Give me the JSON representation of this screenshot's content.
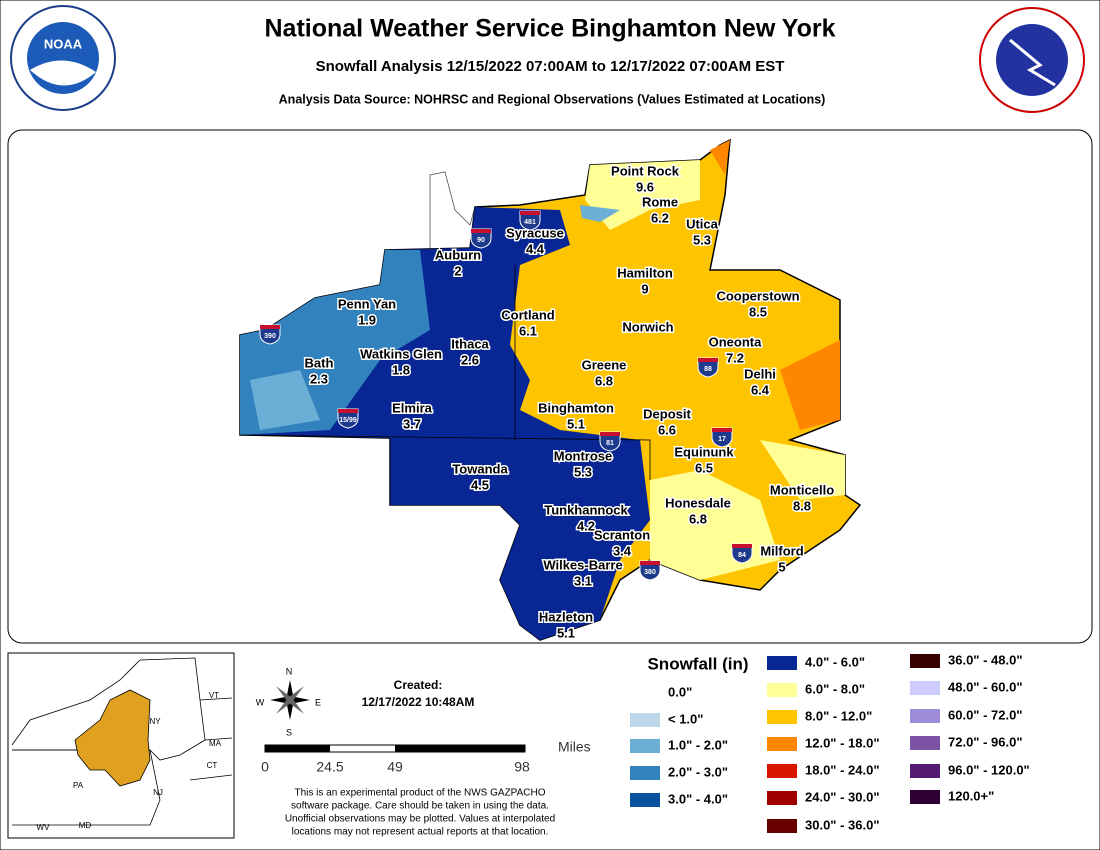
{
  "header": {
    "title": "National Weather Service Binghamton New York",
    "subtitle": "Snowfall Analysis 12/15/2022 07:00AM to 12/17/2022 07:00AM EST",
    "source": "Analysis Data Source: NOHRSC and Regional Observations (Values Estimated at Locations)",
    "left_logo": "NOAA"
  },
  "map": {
    "cities": [
      {
        "name": "Point Rock",
        "value": "9.6"
      },
      {
        "name": "Rome",
        "value": "6.2"
      },
      {
        "name": "Utica",
        "value": "5.3"
      },
      {
        "name": "Syracuse",
        "value": "4.4"
      },
      {
        "name": "Auburn",
        "value": "2"
      },
      {
        "name": "Hamilton",
        "value": "9"
      },
      {
        "name": "Cooperstown",
        "value": "8.5"
      },
      {
        "name": "Penn Yan",
        "value": "1.9"
      },
      {
        "name": "Cortland",
        "value": "6.1"
      },
      {
        "name": "Norwich"
      },
      {
        "name": "Oneonta",
        "value": "7.2"
      },
      {
        "name": "Ithaca",
        "value": "2.6"
      },
      {
        "name": "Watkins Glen",
        "value": "1.8"
      },
      {
        "name": "Bath",
        "value": "2.3"
      },
      {
        "name": "Greene",
        "value": "6.8"
      },
      {
        "name": "Delhi",
        "value": "6.4"
      },
      {
        "name": "Elmira",
        "value": "3.7"
      },
      {
        "name": "Binghamton",
        "value": "5.1"
      },
      {
        "name": "Deposit",
        "value": "6.6"
      },
      {
        "name": "Equinunk",
        "value": "6.5"
      },
      {
        "name": "Montrose",
        "value": "5.3"
      },
      {
        "name": "Towanda",
        "value": "4.5"
      },
      {
        "name": "Monticello",
        "value": "8.8"
      },
      {
        "name": "Honesdale",
        "value": "6.8"
      },
      {
        "name": "Tunkhannock",
        "value": "4.2"
      },
      {
        "name": "Scranton",
        "value": "3.4"
      },
      {
        "name": "Milford",
        "value": "5"
      },
      {
        "name": "Wilkes-Barre",
        "value": "3.1"
      },
      {
        "name": "Hazleton",
        "value": "5.1"
      }
    ],
    "interstates": [
      "481",
      "90",
      "390",
      "88",
      "17",
      "81",
      "84",
      "380",
      "15/99"
    ]
  },
  "inset": {
    "states": [
      "VT",
      "NY",
      "MA",
      "CT",
      "PA",
      "NJ",
      "WV",
      "MD"
    ]
  },
  "compass": [
    "N",
    "E",
    "S",
    "W"
  ],
  "created": {
    "label": "Created:",
    "date": "12/17/2022 10:48AM"
  },
  "scale": {
    "ticks": [
      "0",
      "24.5",
      "49",
      "98"
    ],
    "unit": "Miles"
  },
  "disclaimer": [
    "This is an experimental product of the NWS GAZPACHO",
    "software package. Care should be taken in using the data.",
    "Unofficial observations may be plotted. Values at interpolated",
    "locations may not represent actual reports at that location."
  ],
  "legend": {
    "title": "Snowfall (in)",
    "entries": [
      {
        "label": "0.0\""
      },
      {
        "label": "< 1.0\"",
        "color": "#bcd7ea"
      },
      {
        "label": "1.0\" - 2.0\"",
        "color": "#6baed6"
      },
      {
        "label": "2.0\" - 3.0\"",
        "color": "#3182bd"
      },
      {
        "label": "3.0\" - 4.0\"",
        "color": "#08519c"
      },
      {
        "label": "4.0\" - 6.0\"",
        "color": "#082694"
      },
      {
        "label": "6.0\" - 8.0\"",
        "color": "#ffff96"
      },
      {
        "label": "8.0\" - 12.0\"",
        "color": "#ffc400"
      },
      {
        "label": "12.0\" - 18.0\"",
        "color": "#ff8700"
      },
      {
        "label": "18.0\" - 24.0\"",
        "color": "#db1400"
      },
      {
        "label": "24.0\" - 30.0\"",
        "color": "#9e0000"
      },
      {
        "label": "30.0\" - 36.0\"",
        "color": "#690000"
      },
      {
        "label": "36.0\" - 48.0\"",
        "color": "#360000"
      },
      {
        "label": "48.0\" - 60.0\"",
        "color": "#ccccff"
      },
      {
        "label": "60.0\" - 72.0\"",
        "color": "#9f8cd8"
      },
      {
        "label": "72.0\" - 96.0\"",
        "color": "#7c52a5"
      },
      {
        "label": "96.0\" - 120.0\"",
        "color": "#561c72"
      },
      {
        "label": "120.0+\"",
        "color": "#2e0033"
      }
    ]
  }
}
